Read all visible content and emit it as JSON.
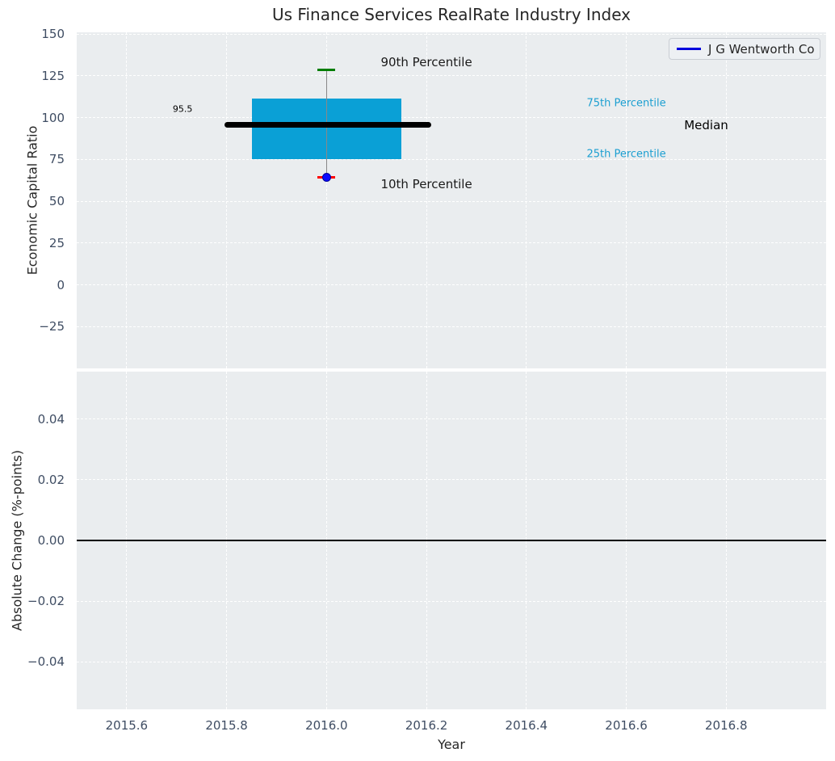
{
  "title": "Us Finance Services RealRate Industry Index",
  "legend": {
    "label": "J G Wentworth Co",
    "line_color": "#0000dd"
  },
  "style": {
    "figure_background": "#ffffff",
    "axes_background": "#eaedef",
    "grid_color": "#ffffff",
    "tick_color": "#3f4d63",
    "title_color": "#262626"
  },
  "chart_data": [
    {
      "type": "boxplot",
      "title": "Us Finance Services RealRate Industry Index",
      "ylabel": "Economic Capital Ratio",
      "xlabel": "",
      "grid": true,
      "legend_position": "upper right",
      "legend_entries": [
        "J G Wentworth Co"
      ],
      "xlim": [
        2015.5,
        2017.0
      ],
      "ylim": [
        -50,
        151
      ],
      "xticks": [
        2015.6,
        2015.8,
        2016.0,
        2016.2,
        2016.4,
        2016.6,
        2016.8
      ],
      "xtick_labels": [
        "2015.6",
        "2015.8",
        "2016.0",
        "2016.2",
        "2016.4",
        "2016.6",
        "2016.8"
      ],
      "yticks": [
        150,
        125,
        100,
        75,
        50,
        25,
        0,
        -25
      ],
      "ytick_labels": [
        "150",
        "125",
        "100",
        "75",
        "50",
        "25",
        "0",
        "−25"
      ],
      "series": [
        {
          "name": "J G Wentworth Co",
          "x": 2016.0,
          "p10": 64.5,
          "p25": 75.0,
          "median": 95.5,
          "p75": 111.5,
          "p90": 128.5,
          "box_x_span": [
            2015.85,
            2016.15
          ],
          "median_x_span": [
            2015.795,
            2016.21
          ],
          "box_color": "#0aa0d6",
          "median_color": "#000000",
          "whisker_color": "#888888",
          "p90_cap_color": "#007d00",
          "p10_cap_color": "#ff0000",
          "p10_marker_color": "#0b0bff",
          "p10_marker_edge": "#000099"
        }
      ],
      "annotations": [
        {
          "name": "median-value-label",
          "text": "95.5",
          "x": 2015.712,
          "y": 105,
          "color": "#000000",
          "size": 11
        },
        {
          "name": "p90-label",
          "text": "90th Percentile",
          "x": 2016.2,
          "y": 133,
          "color": "#1a1a1a",
          "size": 15
        },
        {
          "name": "p10-label",
          "text": "10th Percentile",
          "x": 2016.2,
          "y": 60,
          "color": "#1a1a1a",
          "size": 15
        },
        {
          "name": "p75-label",
          "text": "75th Percentile",
          "x": 2016.6,
          "y": 108.5,
          "color": "#1c9fd1",
          "size": 13
        },
        {
          "name": "p25-label",
          "text": "25th Percentile",
          "x": 2016.6,
          "y": 78,
          "color": "#1c9fd1",
          "size": 13
        },
        {
          "name": "median-label",
          "text": "Median",
          "x": 2016.76,
          "y": 95.5,
          "color": "#000000",
          "size": 15
        }
      ]
    },
    {
      "type": "line",
      "ylabel": "Absolute Change (%-points)",
      "xlabel": "Year",
      "grid": true,
      "xlim": [
        2015.5,
        2017.0
      ],
      "ylim": [
        -0.0557,
        0.0557
      ],
      "xticks": [
        2015.6,
        2015.8,
        2016.0,
        2016.2,
        2016.4,
        2016.6,
        2016.8
      ],
      "xtick_labels": [
        "2015.6",
        "2015.8",
        "2016.0",
        "2016.2",
        "2016.4",
        "2016.6",
        "2016.8"
      ],
      "yticks": [
        0.04,
        0.02,
        0.0,
        -0.02,
        -0.04
      ],
      "ytick_labels": [
        "0.04",
        "0.02",
        "0.00",
        "−0.02",
        "−0.04"
      ],
      "zero_line": {
        "y": 0.0,
        "color": "#000000"
      },
      "series": []
    }
  ]
}
